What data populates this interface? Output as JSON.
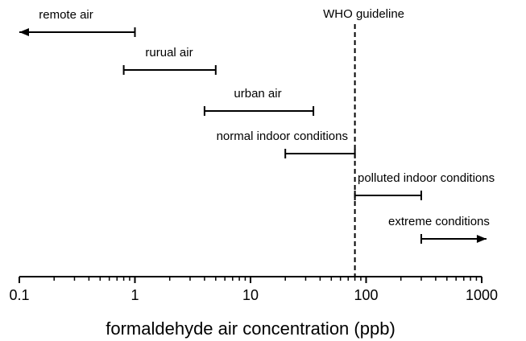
{
  "chart_data": {
    "type": "range",
    "x_label": "formaldehyde air concentration (ppb)",
    "xscale": "log",
    "xlim": [
      0.1,
      1000
    ],
    "xticks": [
      0.1,
      1,
      10,
      100,
      1000
    ],
    "minor_xticks": [
      0.2,
      0.3,
      0.4,
      0.5,
      0.6,
      0.7,
      0.8,
      0.9,
      2,
      3,
      4,
      5,
      6,
      7,
      8,
      9,
      20,
      30,
      40,
      50,
      60,
      70,
      80,
      90,
      200,
      300,
      400,
      500,
      600,
      700,
      800,
      900
    ],
    "color": "#000000",
    "series": [
      {
        "name": "remote air",
        "low": 0.1,
        "high": 1,
        "arrow": "left"
      },
      {
        "name": "rurual air",
        "low": 0.8,
        "high": 5
      },
      {
        "name": "urban air",
        "low": 4,
        "high": 35
      },
      {
        "name": "normal indoor conditions",
        "low": 20,
        "high": 80
      },
      {
        "name": "polluted indoor conditions",
        "low": 80,
        "high": 300
      },
      {
        "name": "extreme conditions",
        "low": 300,
        "high": 1100,
        "arrow": "right"
      }
    ],
    "reference_line": {
      "label": "WHO guideline",
      "value": 80
    }
  }
}
